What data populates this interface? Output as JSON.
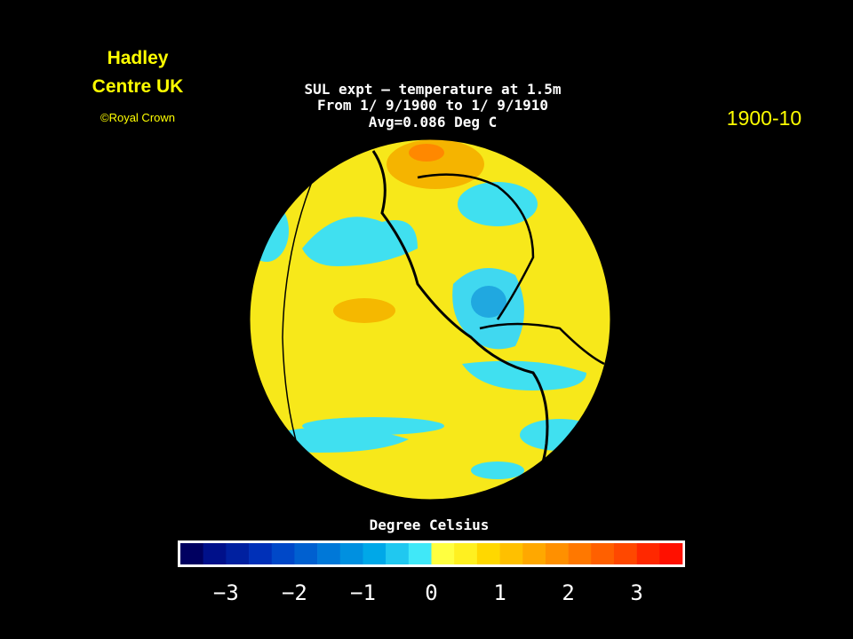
{
  "header": {
    "org_line1": "Hadley",
    "org_line2": "Centre UK",
    "copyright": "©Royal Crown",
    "period": "1900-10"
  },
  "map": {
    "title_lines": [
      "SUL expt – temperature at 1.5m",
      "From 1/ 9/1900 to 1/ 9/1910",
      "Avg=0.086 Deg C"
    ]
  },
  "legend": {
    "title": "Degree Celsius",
    "ticks": [
      "−3",
      "−2",
      "−1",
      "0",
      "1",
      "2",
      "3"
    ],
    "colors": [
      "#000060",
      "#00108a",
      "#0020a0",
      "#0030b8",
      "#0048c8",
      "#0060d0",
      "#0078d8",
      "#0090e0",
      "#00a8e8",
      "#20c8f0",
      "#40e8f8",
      "#ffff40",
      "#fff020",
      "#ffd800",
      "#ffc000",
      "#ffa800",
      "#ff9000",
      "#ff7800",
      "#ff6000",
      "#ff4800",
      "#ff2800",
      "#ff1000"
    ]
  }
}
